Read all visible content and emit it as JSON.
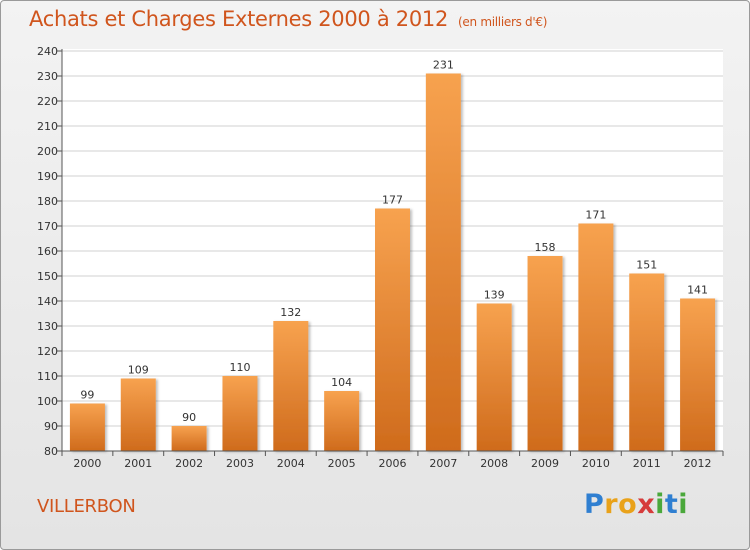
{
  "title": "Achats et Charges Externes 2000 à 2012",
  "subtitle": "(en milliers d'€)",
  "city": "VILLERBON",
  "logo": {
    "letters": [
      "P",
      "r",
      "o",
      "x",
      "i",
      "t",
      "i"
    ],
    "colors": [
      "#2f7fd1",
      "#e9a21a",
      "#e9a21a",
      "#d63b3b",
      "#4aa83b",
      "#2f7fd1",
      "#4aa83b"
    ]
  },
  "colors": {
    "bar_light": "#f7a24f",
    "bar_dark": "#cf6b1c",
    "title": "#d0551d",
    "grid": "#d2d2d2",
    "text": "#333333"
  },
  "chart_data": {
    "type": "bar",
    "categories": [
      "2000",
      "2001",
      "2002",
      "2003",
      "2004",
      "2005",
      "2006",
      "2007",
      "2008",
      "2009",
      "2010",
      "2011",
      "2012"
    ],
    "values": [
      99,
      109,
      90,
      110,
      132,
      104,
      177,
      231,
      139,
      158,
      171,
      151,
      141
    ],
    "ylim": [
      80,
      240
    ],
    "yticks": [
      80,
      90,
      100,
      110,
      120,
      130,
      140,
      150,
      160,
      170,
      180,
      190,
      200,
      210,
      220,
      230,
      240
    ],
    "grid": true,
    "data_labels": true
  }
}
